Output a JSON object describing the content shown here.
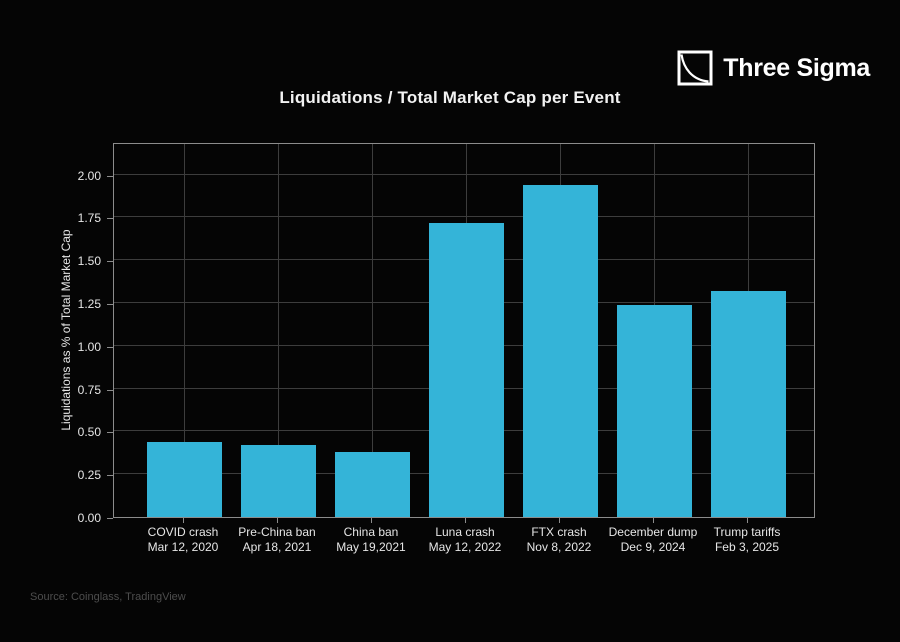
{
  "header": {
    "title": "Liquidations / Total Market Cap per Event",
    "brand": {
      "name": "Three Sigma",
      "icon": "decay-curve-logo-icon"
    }
  },
  "chart_data": {
    "type": "bar",
    "title": "Liquidations / Total Market Cap per Event",
    "xlabel": "",
    "ylabel": "Liquidations as % of Total Market Cap",
    "categories": [
      {
        "event": "COVID crash",
        "date": "Mar 12, 2020"
      },
      {
        "event": "Pre-China ban",
        "date": "Apr 18, 2021"
      },
      {
        "event": "China ban",
        "date": "May 19,2021"
      },
      {
        "event": "Luna crash",
        "date": "May 12, 2022"
      },
      {
        "event": "FTX crash",
        "date": "Nov 8, 2022"
      },
      {
        "event": "December dump",
        "date": "Dec 9, 2024"
      },
      {
        "event": "Trump tariffs",
        "date": "Feb 3, 2025"
      }
    ],
    "values": [
      0.44,
      0.42,
      0.38,
      1.72,
      1.94,
      1.24,
      1.32
    ],
    "ylim": [
      0,
      2.19
    ],
    "yticks": [
      0.0,
      0.25,
      0.5,
      0.75,
      1.0,
      1.25,
      1.5,
      1.75,
      2.0
    ],
    "grid": true,
    "legend": false,
    "colors": {
      "bar": "#34b4d8",
      "grid": "#3d3d3d",
      "axis_border": "#8c8c8c",
      "tick_label": "#e6e6e6",
      "title": "#f2f2f2",
      "background": "#050505"
    }
  },
  "footer": {
    "source": "Source: Coinglass, TradingView"
  }
}
